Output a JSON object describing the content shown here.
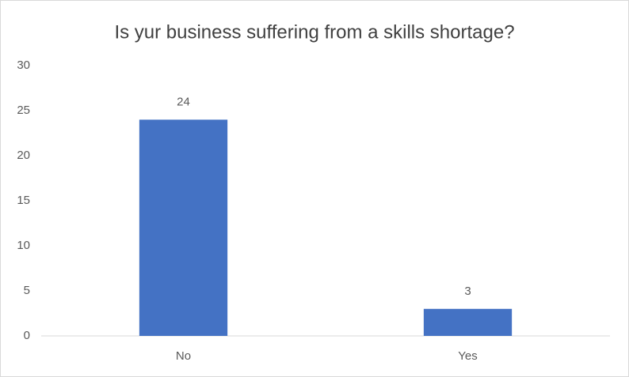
{
  "chart_data": {
    "type": "bar",
    "title": "Is yur business suffering from a skills shortage?",
    "categories": [
      "No",
      "Yes"
    ],
    "values": [
      24,
      3
    ],
    "color": "#4472c4",
    "ylim": [
      0,
      30
    ],
    "yticks": [
      0,
      5,
      10,
      15,
      20,
      25,
      30
    ],
    "grid": false
  }
}
